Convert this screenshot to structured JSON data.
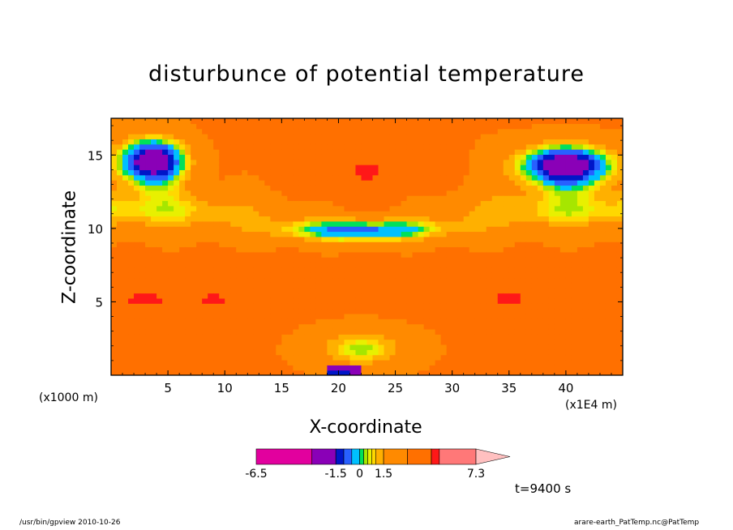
{
  "chart_data": {
    "type": "heatmap",
    "title": "disturbunce of potential temperature",
    "xlabel": "X-coordinate",
    "ylabel": "Z-coordinate",
    "x_units": "(x1E4 m)",
    "y_units": "(x1000 m)",
    "xlim": [
      0,
      45
    ],
    "ylim": [
      0,
      17.5
    ],
    "x_ticks": [
      5,
      10,
      15,
      20,
      25,
      30,
      35,
      40
    ],
    "y_ticks": [
      5,
      10,
      15
    ],
    "colorbar": {
      "levels": [
        -6.5,
        -3.0,
        -1.5,
        -1.0,
        -0.5,
        0,
        0.25,
        0.5,
        0.75,
        1.0,
        1.5,
        3.0,
        4.5,
        5.0,
        7.3
      ],
      "tick_labels": [
        "-6.5",
        "-1.5",
        "0",
        "1.5",
        "7.3"
      ],
      "colors": [
        "#e2009e",
        "#8a00b7",
        "#0016c8",
        "#2860ff",
        "#00c0ff",
        "#00e05a",
        "#a6e600",
        "#e8f000",
        "#ffd800",
        "#ffb000",
        "#ff8a00",
        "#ff7000",
        "#ff1818",
        "#ff7878",
        "#ffc0c0"
      ]
    },
    "time_label": "t=9400 s",
    "grid": false
  },
  "footer": {
    "left": "/usr/bin/gpview   2010-10-26",
    "right": "arare-earth_PatTemp.nc@PatTemp"
  }
}
